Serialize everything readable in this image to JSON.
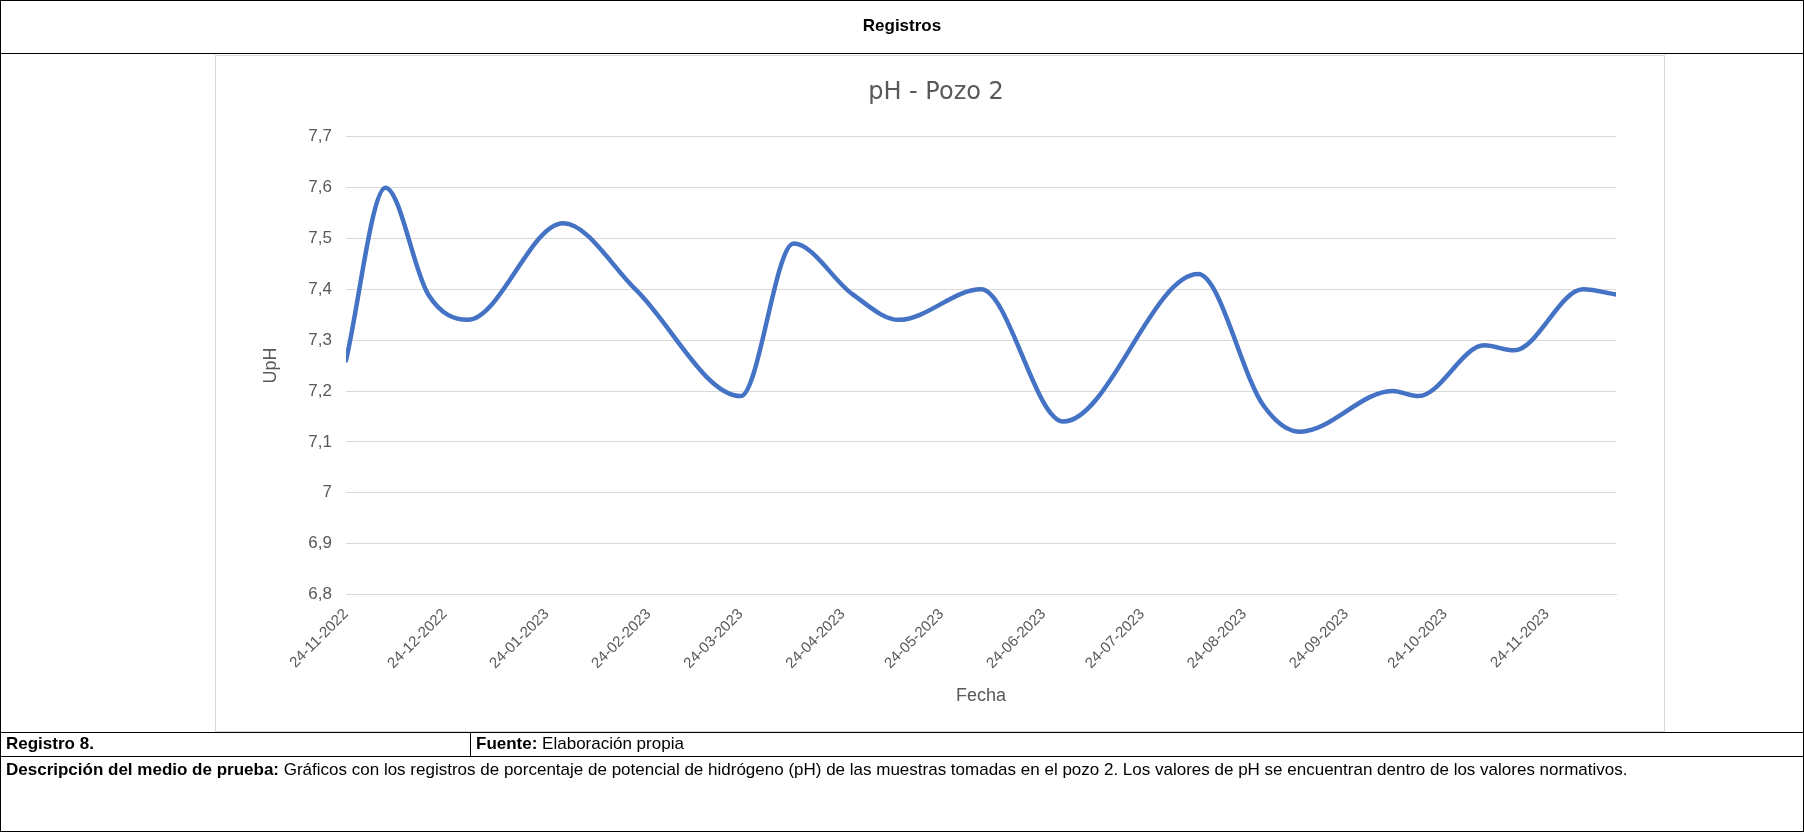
{
  "chart_data": {
    "type": "line",
    "title": "pH - Pozo 2",
    "xlabel": "Fecha",
    "ylabel": "UpH",
    "x": [
      "2022-11-24",
      "2022-12-06",
      "2022-12-19",
      "2022-12-31",
      "2023-01-29",
      "2023-02-20",
      "2023-03-24",
      "2023-04-09",
      "2023-04-27",
      "2023-05-11",
      "2023-06-05",
      "2023-06-30",
      "2023-08-10",
      "2023-08-30",
      "2023-09-10",
      "2023-10-08",
      "2023-10-16",
      "2023-11-05",
      "2023-11-14",
      "2023-12-05",
      "2023-12-15"
    ],
    "series": [
      {
        "color": "#4472c4",
        "values": [
          7.26,
          7.6,
          7.39,
          7.34,
          7.53,
          7.4,
          7.19,
          7.49,
          7.39,
          7.34,
          7.4,
          7.14,
          7.43,
          7.17,
          7.12,
          7.2,
          7.19,
          7.29,
          7.28,
          7.4,
          7.39
        ]
      }
    ],
    "xlim": [
      "2022-11-24",
      "2023-12-15"
    ],
    "xticks": [
      {
        "value": "2022-11-24",
        "label": "24-11-2022"
      },
      {
        "value": "2022-12-24",
        "label": "24-12-2022"
      },
      {
        "value": "2023-01-24",
        "label": "24-01-2023"
      },
      {
        "value": "2023-02-24",
        "label": "24-02-2023"
      },
      {
        "value": "2023-03-24",
        "label": "24-03-2023"
      },
      {
        "value": "2023-04-24",
        "label": "24-04-2023"
      },
      {
        "value": "2023-05-24",
        "label": "24-05-2023"
      },
      {
        "value": "2023-06-24",
        "label": "24-06-2023"
      },
      {
        "value": "2023-07-24",
        "label": "24-07-2023"
      },
      {
        "value": "2023-08-24",
        "label": "24-08-2023"
      },
      {
        "value": "2023-09-24",
        "label": "24-09-2023"
      },
      {
        "value": "2023-10-24",
        "label": "24-10-2023"
      },
      {
        "value": "2023-11-24",
        "label": "24-11-2023"
      }
    ],
    "ylim": [
      6.8,
      7.7
    ],
    "yticks": [
      {
        "value": 6.8,
        "label": "6,8"
      },
      {
        "value": 6.9,
        "label": "6,9"
      },
      {
        "value": 7,
        "label": "7"
      },
      {
        "value": 7.1,
        "label": "7,1"
      },
      {
        "value": 7.2,
        "label": "7,2"
      },
      {
        "value": 7.3,
        "label": "7,3"
      },
      {
        "value": 7.4,
        "label": "7,4"
      },
      {
        "value": 7.5,
        "label": "7,5"
      },
      {
        "value": 7.6,
        "label": "7,6"
      },
      {
        "value": 7.7,
        "label": "7,7"
      }
    ],
    "grid": "y",
    "legend": false,
    "marker": "none",
    "line_style": "solid",
    "annotations": [
      "Registros",
      "Registro 8.",
      "Fuente: Elaboración propia",
      "Descripción del medio de prueba: Gráficos con los registros de porcentaje de potencial de hidrógeno (pH) de las muestras tomadas en el pozo 2. Los valores de pH se encuentran dentro de los valores normativos."
    ]
  }
}
